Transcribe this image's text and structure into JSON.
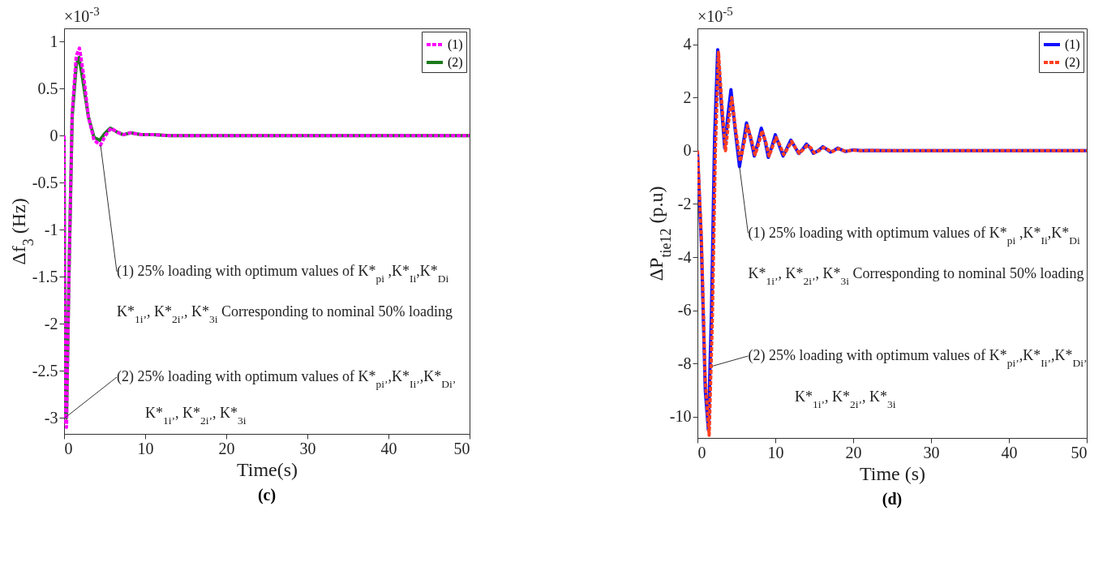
{
  "chart_data": [
    {
      "type": "line",
      "title": "(c)",
      "xlabel": "Time(s)",
      "ylabel": "Δf$_{3}$ (Hz)",
      "xlim": [
        0,
        50
      ],
      "ylim": [
        -3.17,
        1.14
      ],
      "xticks": [
        0,
        10,
        20,
        30,
        40,
        50
      ],
      "yticks": [
        1,
        0.5,
        0,
        -0.5,
        -1,
        -1.5,
        -2,
        -2.5,
        -3
      ],
      "grid": false,
      "legend": "top right",
      "series": [
        {
          "name": "(1)",
          "color": "#ff00ff",
          "line_style": "dashed",
          "x": [
            0,
            0.05,
            0.15,
            0.3,
            0.6,
            1.0,
            1.5,
            1.9,
            2.4,
            3.0,
            3.7,
            4.5,
            5.1,
            5.8,
            6.5,
            7.3,
            8.2,
            9.5,
            11,
            13,
            50
          ],
          "values": [
            0,
            -1.6,
            -3.0,
            -3.1,
            -1.5,
            0.25,
            0.85,
            0.93,
            0.65,
            0.2,
            -0.05,
            -0.1,
            0.0,
            0.08,
            0.04,
            0.01,
            0.03,
            0.01,
            0.01,
            0,
            0
          ]
        },
        {
          "name": "(2)",
          "color": "#1a7a1a",
          "line_style": "solid",
          "x": [
            0,
            0.05,
            0.15,
            0.3,
            0.6,
            1.0,
            1.5,
            1.85,
            2.3,
            3.0,
            3.7,
            4.4,
            5.0,
            5.7,
            6.5,
            7.3,
            8.2,
            9.5,
            11,
            13,
            50
          ],
          "values": [
            0,
            -1.5,
            -2.9,
            -3.0,
            -1.5,
            0.2,
            0.75,
            0.83,
            0.6,
            0.2,
            -0.02,
            -0.05,
            0.02,
            0.08,
            0.04,
            0.01,
            0.03,
            0.01,
            0.01,
            0,
            0
          ]
        }
      ],
      "annotations": [
        "×10$^{-3}$",
        {
          "text": "(1) 25% loading with optimum values of K*$_{pi}$ ,K*$_{Ii}$,K*$_{Di}$",
          "x": 4.5,
          "y": -0.1
        },
        "K*$_{1i’}$, K*$_{2i’}$, K*$_{3i}$ Corresponding to nominal 50% loading",
        {
          "text": "(2) 25% loading with optimum values of K*$_{pi’}$,K*$_{Ii’}$,K*$_{Di’}$",
          "x": 0.1,
          "y": -3.0
        },
        "K*$_{1i’}$, K*$_{2i’}$, K*$_{3i}$"
      ]
    },
    {
      "type": "line",
      "title": "(d)",
      "xlabel": "Time (s)",
      "ylabel": "ΔP$_{tie12}$ (p.u)",
      "xlim": [
        0,
        50
      ],
      "ylim": [
        -10.8,
        4.6
      ],
      "xticks": [
        0,
        10,
        20,
        30,
        40,
        50
      ],
      "yticks": [
        4,
        2,
        0,
        -2,
        -4,
        -6,
        -8,
        -10
      ],
      "grid": false,
      "legend": "top right",
      "series": [
        {
          "name": "(1)",
          "color": "#1010ff",
          "line_style": "solid",
          "x": [
            0,
            0.5,
            1.0,
            1.4,
            1.8,
            2.2,
            2.6,
            3.0,
            3.5,
            3.9,
            4.3,
            4.8,
            5.4,
            5.9,
            6.3,
            6.8,
            7.3,
            7.8,
            8.2,
            8.7,
            9.1,
            9.6,
            10.0,
            10.5,
            11.0,
            11.5,
            12.0,
            12.5,
            13.0,
            13.5,
            14.0,
            14.5,
            14.9,
            15.5,
            16.1,
            16.6,
            17.1,
            17.6,
            18.0,
            19,
            20,
            21,
            22,
            25,
            50
          ],
          "values": [
            0,
            -3.5,
            -9.0,
            -10.5,
            -6,
            0.5,
            3.8,
            2.0,
            0.1,
            1.3,
            2.3,
            0.9,
            -0.6,
            0.3,
            1.05,
            0.5,
            -0.2,
            0.35,
            0.85,
            0.35,
            -0.25,
            0.2,
            0.6,
            0.2,
            -0.2,
            0.1,
            0.4,
            0.15,
            -0.1,
            0.05,
            0.25,
            0.1,
            -0.1,
            0,
            0.15,
            0.05,
            -0.05,
            0.02,
            0.1,
            -0.03,
            0.03,
            0,
            0.01,
            0,
            0
          ]
        },
        {
          "name": "(2)",
          "color": "#ff4020",
          "line_style": "dashed",
          "x": [
            0,
            0.5,
            1.0,
            1.5,
            1.9,
            2.3,
            2.7,
            3.1,
            3.6,
            4.0,
            4.4,
            4.9,
            5.5,
            6.0,
            6.4,
            6.9,
            7.4,
            7.9,
            8.3,
            8.8,
            9.2,
            9.7,
            10.1,
            10.6,
            11.1,
            11.6,
            12.1,
            12.6,
            13.1,
            13.6,
            14.1,
            14.6,
            15.0,
            15.6,
            16.2,
            16.7,
            17.2,
            17.7,
            18.1,
            19,
            20,
            21,
            22,
            25,
            50
          ],
          "values": [
            0,
            -3.2,
            -8.6,
            -10.7,
            -6.5,
            0.0,
            3.7,
            1.9,
            0.0,
            1.1,
            2.0,
            0.8,
            -0.4,
            0.3,
            0.95,
            0.45,
            -0.15,
            0.3,
            0.75,
            0.3,
            -0.2,
            0.2,
            0.5,
            0.2,
            -0.15,
            0.1,
            0.35,
            0.1,
            -0.1,
            0.05,
            0.2,
            0.1,
            -0.08,
            0,
            0.12,
            0.05,
            -0.05,
            0.02,
            0.08,
            -0.02,
            0.02,
            0,
            0.01,
            0,
            0
          ]
        }
      ],
      "annotations": [
        "×10$^{-5}$",
        {
          "text": "(1) 25% loading with optimum values of K*$_{pi}$ ,K*$_{Ii}$,K*$_{Di}$",
          "x": 5.4,
          "y": -0.6
        },
        "K*$_{1i’}$, K*$_{2i’}$, K*$_{3i}$ Corresponding to nominal 50% loading",
        {
          "text": "(2) 25% loading with optimum values of K*$_{pi’}$,K*$_{Ii’}$,K*$_{Di’}$",
          "x": 1.9,
          "y": -8.1
        },
        "K*$_{1i’}$, K*$_{2i’}$, K*$_{3i}$"
      ]
    }
  ]
}
